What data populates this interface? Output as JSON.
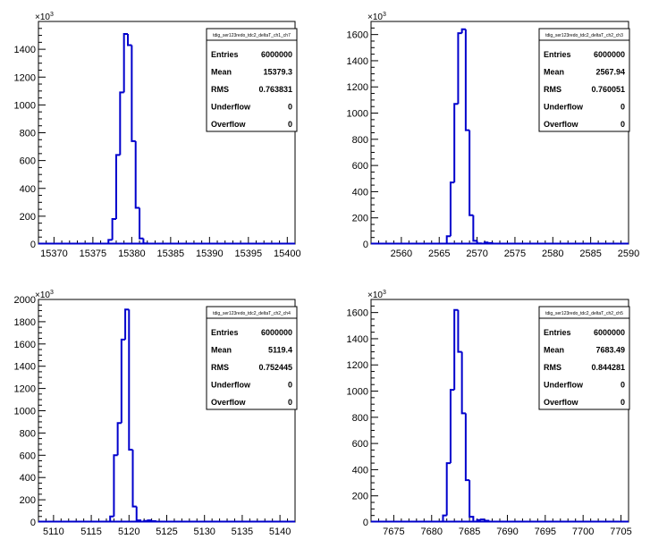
{
  "chart_data": [
    {
      "type": "bar",
      "histogram_name": "tdig_ser123redo_tdc2_deltaT_ch1_ch7",
      "xlim": [
        15368,
        15401
      ],
      "ylim": [
        0,
        1600
      ],
      "y_exponent": "x10^3",
      "y_ticks": [
        "0",
        "200",
        "400",
        "600",
        "800",
        "1000",
        "1200",
        "1400"
      ],
      "x_ticks": [
        "15370",
        "15375",
        "15380",
        "15385",
        "15390",
        "15395",
        "15400"
      ],
      "bins": [
        {
          "x": 15377,
          "y": 30
        },
        {
          "x": 15377.5,
          "y": 180
        },
        {
          "x": 15378,
          "y": 640
        },
        {
          "x": 15378.5,
          "y": 1090
        },
        {
          "x": 15379,
          "y": 1510
        },
        {
          "x": 15379.5,
          "y": 1430
        },
        {
          "x": 15380,
          "y": 740
        },
        {
          "x": 15380.5,
          "y": 260
        },
        {
          "x": 15381,
          "y": 40
        },
        {
          "x": 15381.5,
          "y": 5
        }
      ],
      "stats": {
        "entries": "6000000",
        "mean": "15379.3",
        "rms": "0.763831",
        "underflow": "0",
        "overflow": "0"
      }
    },
    {
      "type": "bar",
      "histogram_name": "tdig_ser123redo_tdc2_deltaT_ch2_ch3",
      "xlim": [
        2556,
        2590
      ],
      "ylim": [
        0,
        1700
      ],
      "y_exponent": "x10^3",
      "y_ticks": [
        "0",
        "200",
        "400",
        "600",
        "800",
        "1000",
        "1200",
        "1400",
        "1600"
      ],
      "x_ticks": [
        "2560",
        "2565",
        "2570",
        "2575",
        "2580",
        "2585",
        "2590"
      ],
      "bins": [
        {
          "x": 2566,
          "y": 60
        },
        {
          "x": 2566.5,
          "y": 470
        },
        {
          "x": 2567,
          "y": 1070
        },
        {
          "x": 2567.5,
          "y": 1610
        },
        {
          "x": 2568,
          "y": 1640
        },
        {
          "x": 2568.5,
          "y": 870
        },
        {
          "x": 2569,
          "y": 220
        },
        {
          "x": 2569.5,
          "y": 25
        },
        {
          "x": 2570,
          "y": 5
        },
        {
          "x": 2571,
          "y": 12
        },
        {
          "x": 2571.5,
          "y": 8
        }
      ],
      "stats": {
        "entries": "6000000",
        "mean": "2567.94",
        "rms": "0.760051",
        "underflow": "0",
        "overflow": "0"
      }
    },
    {
      "type": "bar",
      "histogram_name": "tdig_ser123redo_tdc2_deltaT_ch2_ch4",
      "xlim": [
        5108,
        5142
      ],
      "ylim": [
        0,
        2000
      ],
      "y_exponent": "x10^3",
      "y_ticks": [
        "0",
        "200",
        "400",
        "600",
        "800",
        "1000",
        "1200",
        "1400",
        "1600",
        "1800",
        "2000"
      ],
      "x_ticks": [
        "5110",
        "5115",
        "5120",
        "5125",
        "5130",
        "5135",
        "5140"
      ],
      "bins": [
        {
          "x": 5117.5,
          "y": 50
        },
        {
          "x": 5118,
          "y": 600
        },
        {
          "x": 5118.5,
          "y": 890
        },
        {
          "x": 5119,
          "y": 1640
        },
        {
          "x": 5119.5,
          "y": 1910
        },
        {
          "x": 5120,
          "y": 650
        },
        {
          "x": 5120.5,
          "y": 140
        },
        {
          "x": 5121,
          "y": 15
        },
        {
          "x": 5122,
          "y": 10
        },
        {
          "x": 5122.5,
          "y": 15
        },
        {
          "x": 5123,
          "y": 8
        }
      ],
      "stats": {
        "entries": "6000000",
        "mean": "5119.4",
        "rms": "0.752445",
        "underflow": "0",
        "overflow": "0"
      }
    },
    {
      "type": "bar",
      "histogram_name": "tdig_ser123redo_tdc2_deltaT_ch2_ch5",
      "xlim": [
        7672,
        7706
      ],
      "ylim": [
        0,
        1700
      ],
      "y_exponent": "x10^3",
      "y_ticks": [
        "0",
        "200",
        "400",
        "600",
        "800",
        "1000",
        "1200",
        "1400",
        "1600"
      ],
      "x_ticks": [
        "7675",
        "7680",
        "7685",
        "7690",
        "7695",
        "7700",
        "7705"
      ],
      "bins": [
        {
          "x": 7681.5,
          "y": 50
        },
        {
          "x": 7682,
          "y": 450
        },
        {
          "x": 7682.5,
          "y": 1010
        },
        {
          "x": 7683,
          "y": 1620
        },
        {
          "x": 7683.5,
          "y": 1300
        },
        {
          "x": 7684,
          "y": 830
        },
        {
          "x": 7684.5,
          "y": 320
        },
        {
          "x": 7685,
          "y": 40
        },
        {
          "x": 7686,
          "y": 15
        },
        {
          "x": 7686.5,
          "y": 20
        },
        {
          "x": 7687,
          "y": 10
        }
      ],
      "stats": {
        "entries": "6000000",
        "mean": "7683.49",
        "rms": "0.844281",
        "underflow": "0",
        "overflow": "0"
      }
    }
  ],
  "labels": {
    "entries": "Entries",
    "mean": "Mean",
    "rms": "RMS",
    "underflow": "Underflow",
    "overflow": "Overflow",
    "exp_base": "×10",
    "exp_power": "3"
  },
  "colors": {
    "line": "#0000cc",
    "axis": "#000000",
    "background": "#ffffff"
  }
}
